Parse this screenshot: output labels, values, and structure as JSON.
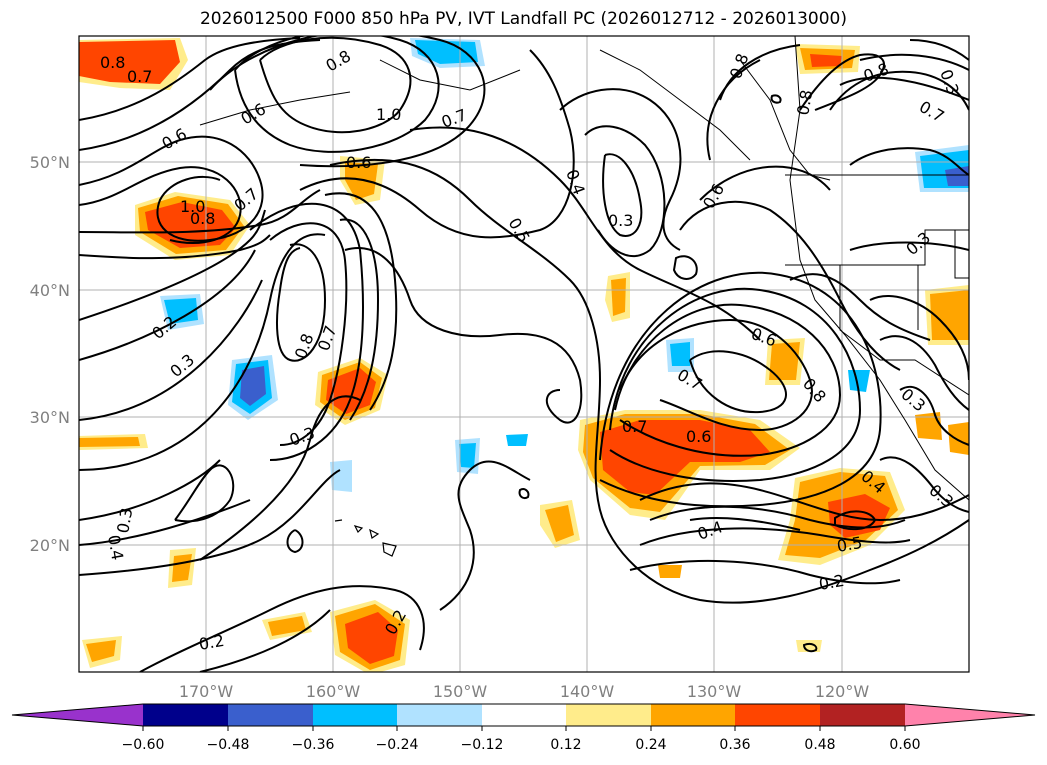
{
  "title": "2026012500 F000 850 hPa PV, IVT Landfall PC (2026012712 - 2026013000)",
  "map": {
    "lat_labels": [
      "50°N",
      "40°N",
      "30°N",
      "20°N"
    ],
    "lon_labels": [
      "170°W",
      "160°W",
      "150°W",
      "140°W",
      "130°W",
      "120°W"
    ],
    "contour_labels": [
      "0.8",
      "0.7",
      "0.6",
      "1.0",
      "0.8",
      "0.7",
      "0.6",
      "0.8",
      "1.0",
      "0.7",
      "0.8",
      "0.8",
      "0.7",
      "0.2",
      "0.3",
      "0.8",
      "0.7",
      "0.3",
      "0.6",
      "0.5",
      "0.4",
      "0.3",
      "0.6",
      "0.6",
      "0.7",
      "0.8",
      "0.7",
      "0.6",
      "0.4",
      "0.5",
      "0.2",
      "0.4",
      "0.3",
      "0.2",
      "0.2",
      "0.3",
      "0.8",
      "0.3",
      "0.3",
      "0.4",
      "0.3"
    ]
  },
  "colorbar": {
    "ticks": [
      "−0.60",
      "−0.48",
      "−0.36",
      "−0.24",
      "−0.12",
      "0.12",
      "0.24",
      "0.36",
      "0.48",
      "0.60"
    ],
    "colors": [
      "#9932cc",
      "#00008b",
      "#3a5fcd",
      "#00bfff",
      "#b0e2ff",
      "#ffffff",
      "#ffec8b",
      "#ffa500",
      "#ff4500",
      "#b22222",
      "#ff82ab"
    ]
  }
}
